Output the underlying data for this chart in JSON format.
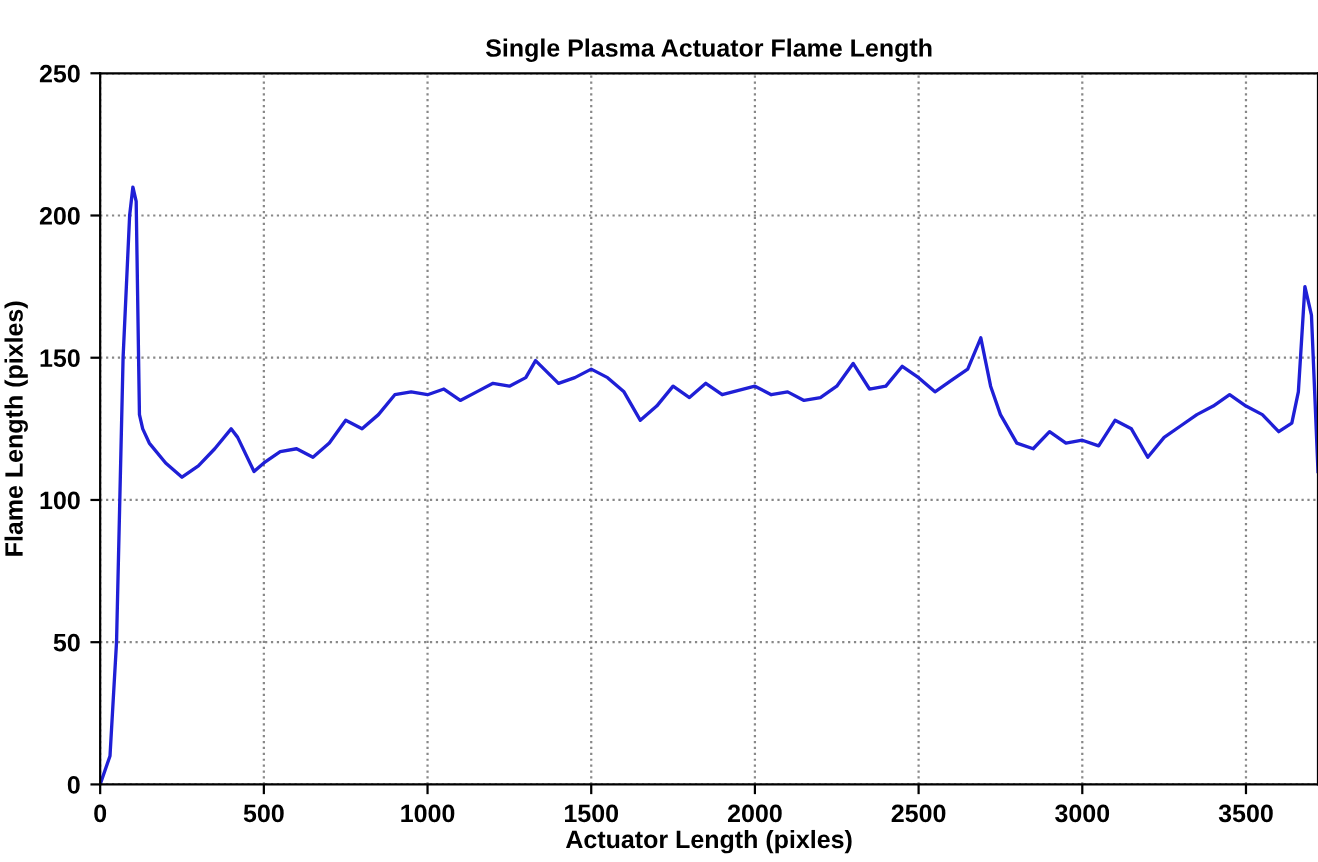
{
  "chart_data": {
    "type": "line",
    "title": "Single Plasma Actuator Flame Length",
    "xlabel": "Actuator Length (pixles)",
    "ylabel": "Flame Length (pixles)",
    "series": [
      {
        "color": "#1f1fd6",
        "x": [
          0,
          30,
          50,
          70,
          90,
          100,
          110,
          120,
          130,
          150,
          200,
          250,
          300,
          350,
          400,
          420,
          470,
          500,
          550,
          600,
          650,
          700,
          750,
          800,
          850,
          900,
          950,
          1000,
          1050,
          1100,
          1150,
          1200,
          1250,
          1300,
          1330,
          1400,
          1450,
          1500,
          1550,
          1600,
          1650,
          1700,
          1750,
          1800,
          1850,
          1900,
          2000,
          2050,
          2100,
          2150,
          2200,
          2250,
          2300,
          2350,
          2400,
          2450,
          2500,
          2550,
          2600,
          2650,
          2690,
          2720,
          2750,
          2800,
          2850,
          2900,
          2950,
          3000,
          3050,
          3100,
          3150,
          3200,
          3250,
          3300,
          3350,
          3400,
          3450,
          3500,
          3550,
          3600,
          3640,
          3660,
          3680,
          3700,
          3720
        ],
        "values": [
          0,
          10,
          50,
          150,
          200,
          210,
          205,
          130,
          125,
          120,
          113,
          108,
          112,
          118,
          125,
          122,
          110,
          113,
          117,
          118,
          115,
          120,
          128,
          125,
          130,
          137,
          138,
          137,
          139,
          135,
          138,
          141,
          140,
          143,
          149,
          141,
          143,
          146,
          143,
          138,
          128,
          133,
          140,
          136,
          141,
          137,
          140,
          137,
          138,
          135,
          136,
          140,
          148,
          139,
          140,
          147,
          143,
          138,
          142,
          146,
          157,
          140,
          130,
          120,
          118,
          124,
          120,
          121,
          119,
          128,
          125,
          115,
          122,
          126,
          130,
          133,
          137,
          133,
          130,
          124,
          127,
          138,
          175,
          165,
          110
        ]
      }
    ],
    "xlim": [
      0,
      3720
    ],
    "ylim": [
      0,
      250
    ],
    "xticks": [
      0,
      500,
      1000,
      1500,
      2000,
      2500,
      3000,
      3500
    ],
    "yticks": [
      0,
      50,
      100,
      150,
      200,
      250
    ],
    "grid": true,
    "line_style": "solid",
    "marker": "none"
  }
}
